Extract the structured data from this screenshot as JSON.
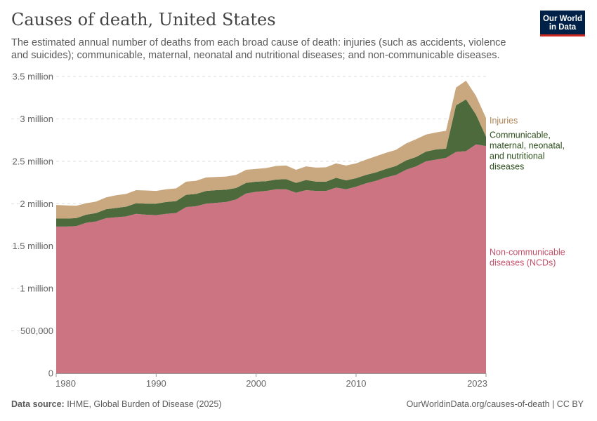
{
  "header": {
    "title": "Causes of death, United States",
    "subtitle": "The estimated annual number of deaths from each broad cause of death: injuries (such as accidents, violence and suicides); communicable, maternal, neonatal and nutritional diseases; and non-communicable diseases.",
    "logo_line1": "Our World",
    "logo_line2": "in Data"
  },
  "footer": {
    "source_label": "Data source:",
    "source_text": "IHME, Global Burden of Disease (2025)",
    "url": "OurWorldinData.org/causes-of-death | CC BY"
  },
  "colors": {
    "ncd": "#cd7483",
    "communicable": "#4c6a3c",
    "injuries": "#c9a77f",
    "ncd_label": "#c4506a",
    "communicable_label": "#2d4e1d",
    "injuries_label": "#b08453"
  },
  "chart_data": {
    "type": "area",
    "stacked": true,
    "title": "Causes of death, United States",
    "x": [
      1980,
      1981,
      1982,
      1983,
      1984,
      1985,
      1986,
      1987,
      1988,
      1989,
      1990,
      1991,
      1992,
      1993,
      1994,
      1995,
      1996,
      1997,
      1998,
      1999,
      2000,
      2001,
      2002,
      2003,
      2004,
      2005,
      2006,
      2007,
      2008,
      2009,
      2010,
      2011,
      2012,
      2013,
      2014,
      2015,
      2016,
      2017,
      2018,
      2019,
      2020,
      2021,
      2022,
      2023
    ],
    "xlim": [
      1980,
      2023
    ],
    "ylim": [
      0,
      3500000
    ],
    "x_ticks": [
      1980,
      1990,
      2000,
      2010,
      2023
    ],
    "y_ticks": [
      0,
      500000,
      1000000,
      1500000,
      2000000,
      2500000,
      3000000,
      3500000
    ],
    "y_tick_labels": [
      "0",
      "500,000",
      "1 million",
      "1.5 million",
      "2 million",
      "2.5 million",
      "3 million",
      "3.5 million"
    ],
    "grid": "horizontal dashed",
    "legend": "right, labels at series ends",
    "series": [
      {
        "name": "Non-communicable diseases (NCDs)",
        "label_lines": [
          "Non-communicable",
          "diseases (NCDs)"
        ],
        "color": "#cd7483",
        "values": [
          1730000,
          1730000,
          1735000,
          1775000,
          1790000,
          1830000,
          1840000,
          1850000,
          1880000,
          1870000,
          1865000,
          1880000,
          1890000,
          1960000,
          1970000,
          2000000,
          2010000,
          2020000,
          2050000,
          2120000,
          2140000,
          2150000,
          2170000,
          2170000,
          2130000,
          2160000,
          2150000,
          2150000,
          2190000,
          2170000,
          2200000,
          2240000,
          2270000,
          2310000,
          2340000,
          2400000,
          2440000,
          2500000,
          2520000,
          2540000,
          2610000,
          2620000,
          2700000,
          2680000
        ]
      },
      {
        "name": "Communicable, maternal, neonatal, and nutritional diseases",
        "label_lines": [
          "Communicable,",
          "maternal, neonatal,",
          "and nutritional",
          "diseases"
        ],
        "color": "#4c6a3c",
        "values": [
          95000,
          95000,
          95000,
          95000,
          100000,
          105000,
          110000,
          115000,
          125000,
          130000,
          135000,
          140000,
          140000,
          145000,
          145000,
          150000,
          150000,
          145000,
          135000,
          125000,
          120000,
          115000,
          115000,
          120000,
          115000,
          120000,
          110000,
          110000,
          115000,
          105000,
          100000,
          100000,
          100000,
          100000,
          105000,
          110000,
          110000,
          115000,
          120000,
          110000,
          550000,
          610000,
          350000,
          110000
        ]
      },
      {
        "name": "Injuries",
        "label_lines": [
          "Injuries"
        ],
        "color": "#c9a77f",
        "values": [
          160000,
          155000,
          145000,
          135000,
          135000,
          140000,
          150000,
          150000,
          155000,
          155000,
          150000,
          150000,
          150000,
          155000,
          155000,
          160000,
          155000,
          155000,
          155000,
          155000,
          150000,
          155000,
          160000,
          160000,
          155000,
          160000,
          165000,
          170000,
          170000,
          175000,
          175000,
          180000,
          190000,
          190000,
          190000,
          200000,
          210000,
          200000,
          200000,
          210000,
          210000,
          220000,
          220000,
          220000
        ]
      }
    ]
  }
}
